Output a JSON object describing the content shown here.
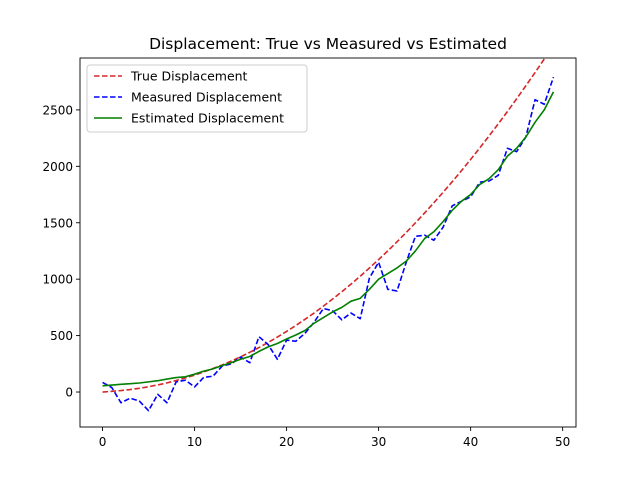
{
  "chart_data": {
    "type": "line",
    "title": "Displacement: True vs Measured vs Estimated",
    "xlabel": "",
    "ylabel": "",
    "xlim": [
      -2.45,
      51.45
    ],
    "ylim": [
      -310,
      2960
    ],
    "x_ticks": [
      0,
      10,
      20,
      30,
      40,
      50
    ],
    "y_ticks": [
      0,
      500,
      1000,
      1500,
      2000,
      2500
    ],
    "grid": false,
    "legend_position": "upper-left",
    "x": [
      0,
      1,
      2,
      3,
      4,
      5,
      6,
      7,
      8,
      9,
      10,
      11,
      12,
      13,
      14,
      15,
      16,
      17,
      18,
      19,
      20,
      21,
      22,
      23,
      24,
      25,
      26,
      27,
      28,
      29,
      30,
      31,
      32,
      33,
      34,
      35,
      36,
      37,
      38,
      39,
      40,
      41,
      42,
      43,
      44,
      45,
      46,
      47,
      48,
      49
    ],
    "series": [
      {
        "name": "True Displacement",
        "color": "#d62728",
        "line_style": "dashed",
        "values": [
          0,
          6,
          13,
          22,
          33,
          47,
          63,
          81,
          102,
          125,
          150,
          178,
          208,
          240,
          275,
          312,
          352,
          394,
          439,
          487,
          537,
          589,
          644,
          701,
          761,
          824,
          889,
          956,
          1026,
          1099,
          1174,
          1251,
          1331,
          1414,
          1499,
          1587,
          1677,
          1769,
          1864,
          1961,
          2061,
          2164,
          2269,
          2376,
          2486,
          2599,
          2714,
          2831,
          2951,
          3074
        ]
      },
      {
        "name": "Measured Displacement",
        "color": "#0000ff",
        "line_style": "dashed",
        "values": [
          85,
          40,
          -95,
          -55,
          -80,
          -165,
          -20,
          -95,
          90,
          105,
          45,
          130,
          140,
          230,
          250,
          310,
          260,
          490,
          420,
          290,
          460,
          450,
          520,
          620,
          740,
          720,
          640,
          700,
          650,
          1010,
          1150,
          910,
          895,
          1150,
          1380,
          1390,
          1345,
          1460,
          1650,
          1690,
          1730,
          1860,
          1870,
          1920,
          2160,
          2130,
          2260,
          2590,
          2550,
          2790
        ]
      },
      {
        "name": "Estimated Displacement",
        "color": "#008000",
        "line_style": "solid",
        "values": [
          55,
          62,
          68,
          74,
          80,
          90,
          100,
          115,
          128,
          135,
          158,
          185,
          205,
          235,
          260,
          290,
          315,
          360,
          400,
          430,
          470,
          505,
          545,
          610,
          660,
          710,
          750,
          805,
          830,
          910,
          1000,
          1050,
          1100,
          1160,
          1250,
          1360,
          1420,
          1510,
          1610,
          1690,
          1750,
          1840,
          1890,
          1970,
          2090,
          2160,
          2260,
          2390,
          2500,
          2660
        ]
      }
    ]
  }
}
